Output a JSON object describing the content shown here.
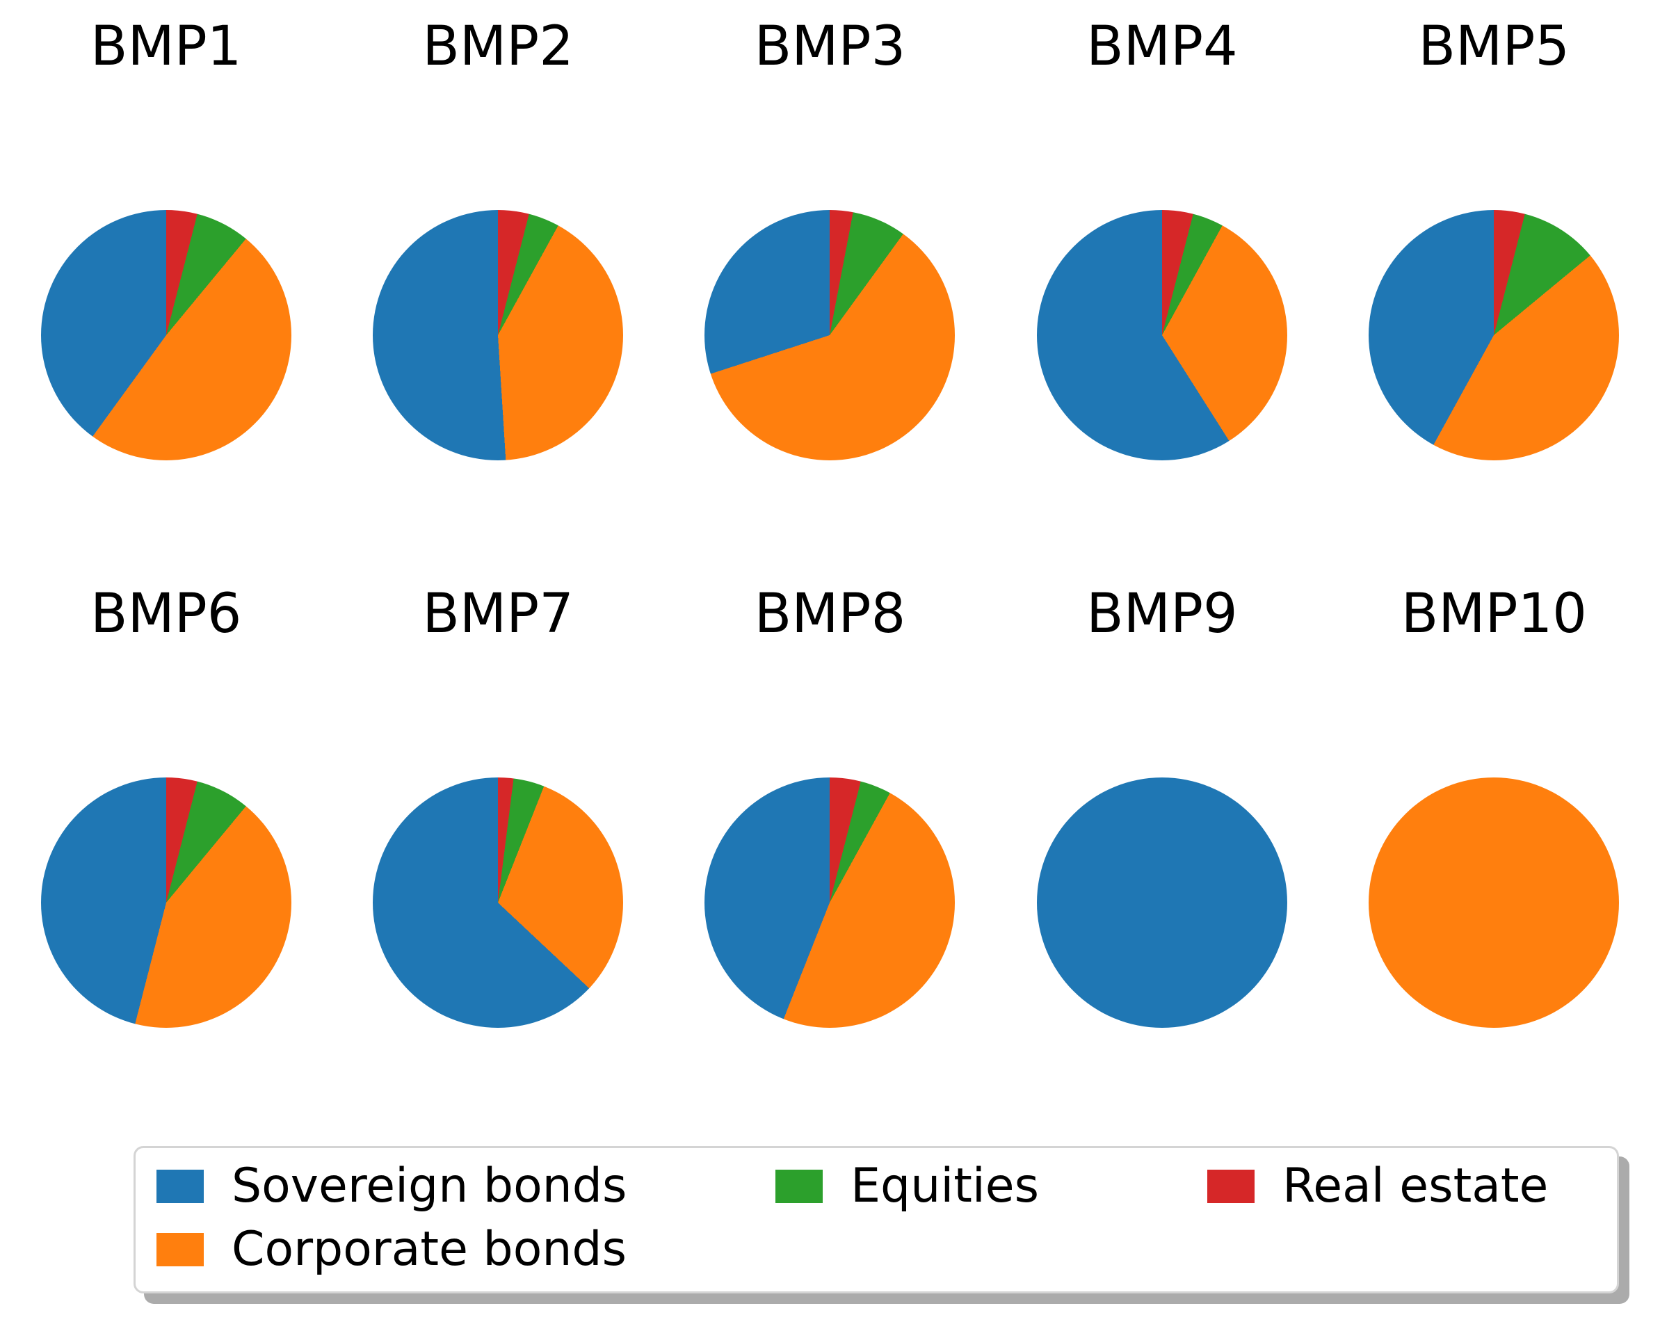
{
  "figure": {
    "background": "#ffffff",
    "rows": 2,
    "columns": 5
  },
  "legend": {
    "position": "bottom",
    "columns": 3,
    "items": [
      {
        "label": "Sovereign bonds",
        "color": "#1f77b4"
      },
      {
        "label": "Corporate bonds",
        "color": "#ff7f0e"
      },
      {
        "label": "Equities",
        "color": "#2ca02c"
      },
      {
        "label": "Real estate",
        "color": "#d62728"
      }
    ]
  },
  "chart_data": [
    {
      "type": "pie",
      "title": "BMP1",
      "labels": [
        "Sovereign bonds",
        "Corporate bonds",
        "Equities",
        "Real estate"
      ],
      "values": [
        40,
        49,
        7,
        4
      ],
      "start_angle": 90,
      "direction": "counterclockwise"
    },
    {
      "type": "pie",
      "title": "BMP2",
      "labels": [
        "Sovereign bonds",
        "Corporate bonds",
        "Equities",
        "Real estate"
      ],
      "values": [
        51,
        41,
        4,
        4
      ],
      "start_angle": 90,
      "direction": "counterclockwise"
    },
    {
      "type": "pie",
      "title": "BMP3",
      "labels": [
        "Sovereign bonds",
        "Corporate bonds",
        "Equities",
        "Real estate"
      ],
      "values": [
        30,
        60,
        7,
        3
      ],
      "start_angle": 90,
      "direction": "counterclockwise"
    },
    {
      "type": "pie",
      "title": "BMP4",
      "labels": [
        "Sovereign bonds",
        "Corporate bonds",
        "Equities",
        "Real estate"
      ],
      "values": [
        59,
        33,
        4,
        4
      ],
      "start_angle": 90,
      "direction": "counterclockwise"
    },
    {
      "type": "pie",
      "title": "BMP5",
      "labels": [
        "Sovereign bonds",
        "Corporate bonds",
        "Equities",
        "Real estate"
      ],
      "values": [
        42,
        44,
        10,
        4
      ],
      "start_angle": 90,
      "direction": "counterclockwise"
    },
    {
      "type": "pie",
      "title": "BMP6",
      "labels": [
        "Sovereign bonds",
        "Corporate bonds",
        "Equities",
        "Real estate"
      ],
      "values": [
        46,
        43,
        7,
        4
      ],
      "start_angle": 90,
      "direction": "counterclockwise"
    },
    {
      "type": "pie",
      "title": "BMP7",
      "labels": [
        "Sovereign bonds",
        "Corporate bonds",
        "Equities",
        "Real estate"
      ],
      "values": [
        63,
        31,
        4,
        2
      ],
      "start_angle": 90,
      "direction": "counterclockwise"
    },
    {
      "type": "pie",
      "title": "BMP8",
      "labels": [
        "Sovereign bonds",
        "Corporate bonds",
        "Equities",
        "Real estate"
      ],
      "values": [
        44,
        48,
        4,
        4
      ],
      "start_angle": 90,
      "direction": "counterclockwise"
    },
    {
      "type": "pie",
      "title": "BMP9",
      "labels": [
        "Sovereign bonds",
        "Corporate bonds",
        "Equities",
        "Real estate"
      ],
      "values": [
        100,
        0,
        0,
        0
      ],
      "start_angle": 90,
      "direction": "counterclockwise"
    },
    {
      "type": "pie",
      "title": "BMP10",
      "labels": [
        "Sovereign bonds",
        "Corporate bonds",
        "Equities",
        "Real estate"
      ],
      "values": [
        0,
        100,
        0,
        0
      ],
      "start_angle": 90,
      "direction": "counterclockwise"
    }
  ]
}
